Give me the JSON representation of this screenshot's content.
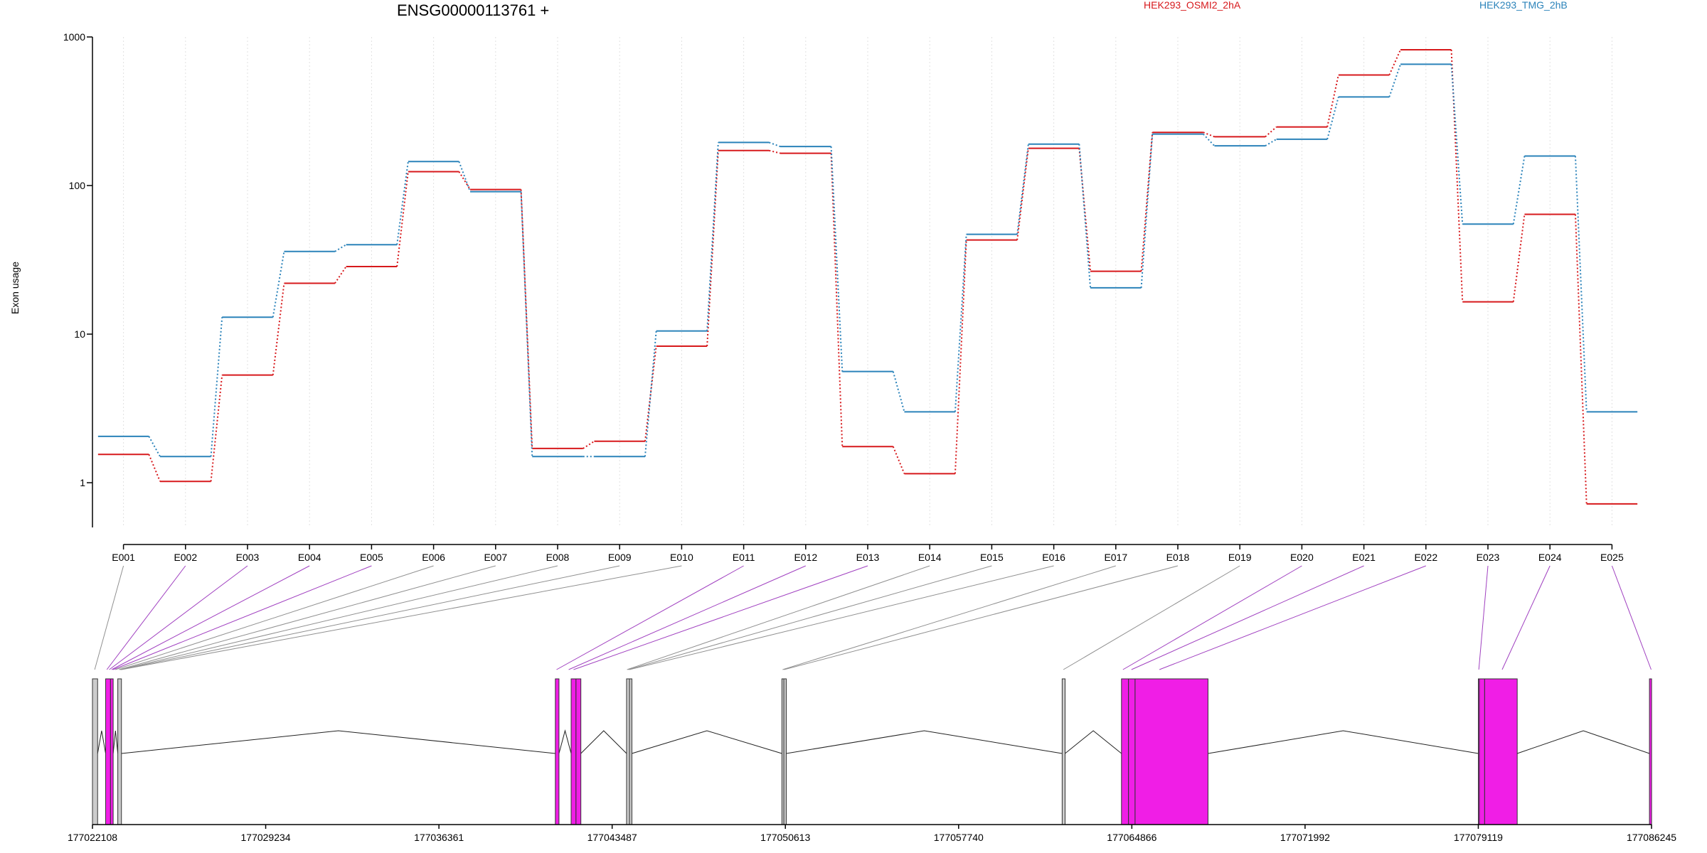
{
  "chart_data": {
    "type": "line",
    "title": "ENSG00000113761 +",
    "ylabel": "Exon usage",
    "xlabel": "",
    "y_scale": "log",
    "ylim": [
      0.5,
      1000
    ],
    "y_ticks": [
      {
        "value": 1,
        "label": "1"
      },
      {
        "value": 10,
        "label": "10"
      },
      {
        "value": 100,
        "label": "100"
      },
      {
        "value": 1000,
        "label": "1000"
      }
    ],
    "grid": "vertical-dotted",
    "legend_position": "top",
    "categories": [
      "E001",
      "E002",
      "E003",
      "E004",
      "E005",
      "E006",
      "E007",
      "E008",
      "E009",
      "E010",
      "E011",
      "E012",
      "E013",
      "E014",
      "E015",
      "E016",
      "E017",
      "E018",
      "E019",
      "E020",
      "E021",
      "E022",
      "E023",
      "E024",
      "E025"
    ],
    "series": [
      {
        "name": "HEK293_OSMI2_2hA",
        "color": "#d7191c",
        "values": [
          1.55,
          1.02,
          5.3,
          22,
          28.5,
          124,
          94,
          1.7,
          1.9,
          8.3,
          172,
          165,
          1.75,
          1.15,
          43,
          178,
          26.5,
          228,
          213,
          248,
          555,
          820,
          16.5,
          64,
          0.72
        ]
      },
      {
        "name": "HEK293_TMG_2hB",
        "color": "#2b83ba",
        "values": [
          2.05,
          1.5,
          13,
          36,
          40,
          145,
          91,
          1.5,
          1.5,
          10.5,
          195,
          183,
          5.6,
          3.0,
          47,
          190,
          20.5,
          222,
          185,
          205,
          395,
          655,
          55,
          158,
          3.0
        ]
      }
    ],
    "exon_significant": [
      false,
      true,
      true,
      true,
      true,
      false,
      false,
      false,
      false,
      false,
      true,
      true,
      true,
      false,
      false,
      false,
      false,
      false,
      false,
      true,
      true,
      true,
      true,
      true,
      true
    ],
    "genome_axis": {
      "ticks": [
        "177022108",
        "177029234",
        "177036361",
        "177043487",
        "177050613",
        "177057740",
        "177064866",
        "177071992",
        "177079119",
        "177086245"
      ]
    },
    "colors": {
      "significant_exon": "#f01ee6",
      "normal_exon": "#cccccc",
      "significant_link": "#a040c0",
      "normal_link": "#909090"
    }
  }
}
